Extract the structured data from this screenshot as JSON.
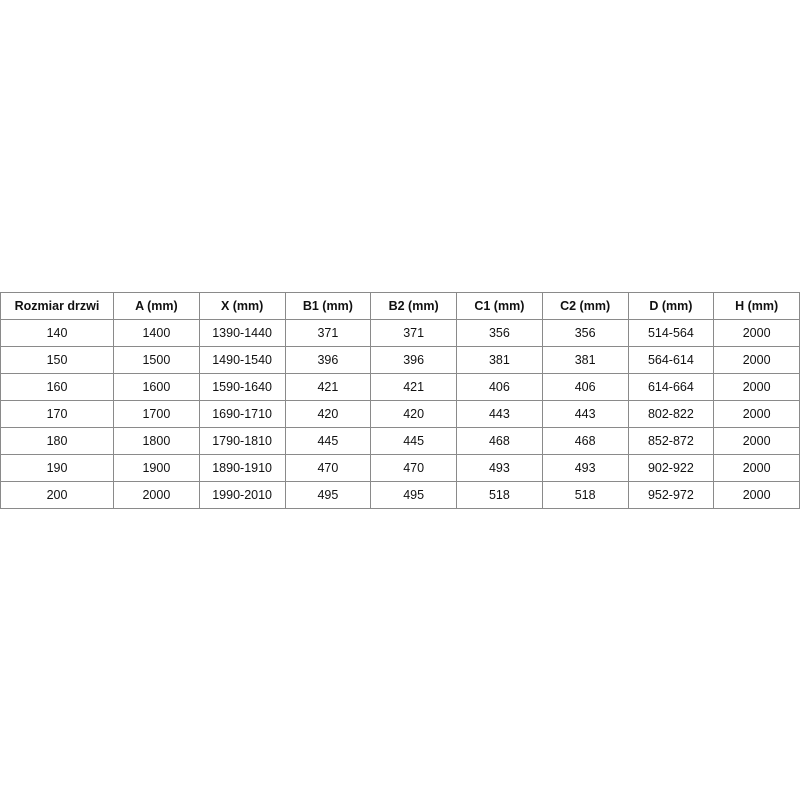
{
  "table": {
    "headers": [
      "Rozmiar drzwi",
      "A (mm)",
      "X (mm)",
      "B1 (mm)",
      "B2 (mm)",
      "C1 (mm)",
      "C2 (mm)",
      "D (mm)",
      "H (mm)"
    ],
    "rows": [
      [
        "140",
        "1400",
        "1390-1440",
        "371",
        "371",
        "356",
        "356",
        "514-564",
        "2000"
      ],
      [
        "150",
        "1500",
        "1490-1540",
        "396",
        "396",
        "381",
        "381",
        "564-614",
        "2000"
      ],
      [
        "160",
        "1600",
        "1590-1640",
        "421",
        "421",
        "406",
        "406",
        "614-664",
        "2000"
      ],
      [
        "170",
        "1700",
        "1690-1710",
        "420",
        "420",
        "443",
        "443",
        "802-822",
        "2000"
      ],
      [
        "180",
        "1800",
        "1790-1810",
        "445",
        "445",
        "468",
        "468",
        "852-872",
        "2000"
      ],
      [
        "190",
        "1900",
        "1890-1910",
        "470",
        "470",
        "493",
        "493",
        "902-922",
        "2000"
      ],
      [
        "200",
        "2000",
        "1990-2010",
        "495",
        "495",
        "518",
        "518",
        "952-972",
        "2000"
      ]
    ]
  }
}
